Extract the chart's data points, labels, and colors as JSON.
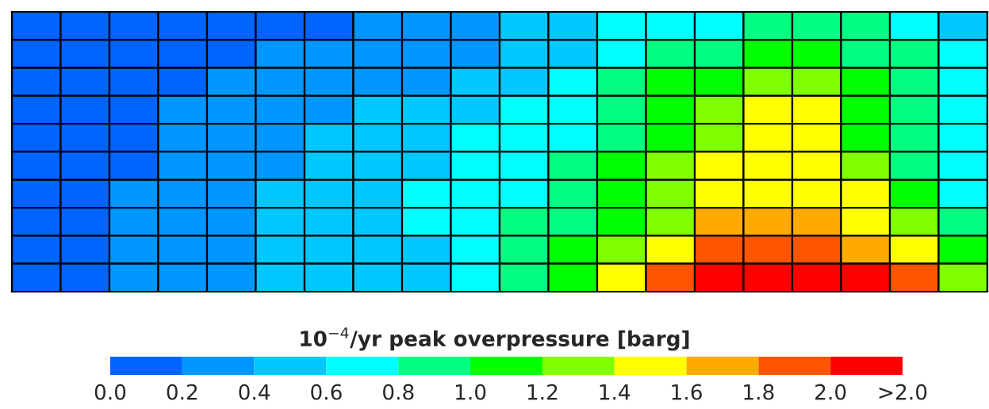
{
  "chart_data": {
    "type": "heatmap",
    "clabel": "10$^{−4}$/yr peak overpressure [barg]",
    "categories": [
      null,
      null,
      null,
      null,
      null,
      null,
      null,
      null,
      null,
      null,
      null,
      null,
      null,
      null,
      null,
      null,
      null,
      null,
      null,
      null
    ],
    "y_categories": [
      null,
      null,
      null,
      null,
      null,
      null,
      null,
      null,
      null,
      null
    ],
    "cells": [
      [
        0.1,
        0.1,
        0.1,
        0.1,
        0.1,
        0.1,
        0.1,
        0.3,
        0.3,
        0.3,
        0.5,
        0.5,
        0.7,
        0.7,
        0.7,
        0.9,
        0.9,
        0.9,
        0.7,
        0.5
      ],
      [
        0.1,
        0.1,
        0.1,
        0.1,
        0.1,
        0.3,
        0.3,
        0.3,
        0.3,
        0.3,
        0.5,
        0.5,
        0.7,
        0.9,
        0.9,
        1.1,
        1.1,
        0.9,
        0.9,
        0.7
      ],
      [
        0.1,
        0.1,
        0.1,
        0.1,
        0.3,
        0.3,
        0.3,
        0.3,
        0.3,
        0.5,
        0.5,
        0.7,
        0.9,
        1.1,
        1.1,
        1.3,
        1.3,
        1.1,
        0.9,
        0.7
      ],
      [
        0.1,
        0.1,
        0.1,
        0.3,
        0.3,
        0.3,
        0.3,
        0.5,
        0.5,
        0.5,
        0.7,
        0.7,
        0.9,
        1.1,
        1.3,
        1.5,
        1.5,
        1.1,
        0.9,
        0.7
      ],
      [
        0.1,
        0.1,
        0.1,
        0.3,
        0.3,
        0.3,
        0.5,
        0.5,
        0.5,
        0.7,
        0.7,
        0.7,
        0.9,
        1.1,
        1.3,
        1.5,
        1.5,
        1.1,
        0.9,
        0.7
      ],
      [
        0.1,
        0.1,
        0.1,
        0.3,
        0.3,
        0.3,
        0.5,
        0.5,
        0.5,
        0.7,
        0.7,
        0.9,
        1.1,
        1.3,
        1.5,
        1.5,
        1.5,
        1.3,
        0.9,
        0.7
      ],
      [
        0.1,
        0.1,
        0.3,
        0.3,
        0.3,
        0.5,
        0.5,
        0.5,
        0.7,
        0.7,
        0.7,
        0.9,
        1.1,
        1.3,
        1.5,
        1.5,
        1.5,
        1.5,
        1.1,
        0.7
      ],
      [
        0.1,
        0.1,
        0.3,
        0.3,
        0.3,
        0.5,
        0.5,
        0.5,
        0.7,
        0.7,
        0.9,
        0.9,
        1.1,
        1.3,
        1.7,
        1.7,
        1.7,
        1.5,
        1.3,
        0.9
      ],
      [
        0.1,
        0.1,
        0.3,
        0.3,
        0.3,
        0.5,
        0.5,
        0.5,
        0.5,
        0.7,
        0.9,
        1.1,
        1.3,
        1.5,
        1.9,
        1.9,
        1.9,
        1.7,
        1.5,
        1.1
      ],
      [
        0.1,
        0.1,
        0.3,
        0.3,
        0.3,
        0.5,
        0.5,
        0.5,
        0.5,
        0.7,
        0.9,
        1.1,
        1.5,
        1.9,
        2.1,
        2.1,
        2.1,
        2.1,
        1.9,
        1.3
      ]
    ],
    "colors": [
      "#0064ff",
      "#0096ff",
      "#00c8ff",
      "#00ffff",
      "#00ff80",
      "#00ff00",
      "#80ff00",
      "#ffff00",
      "#ffaa00",
      "#ff5500",
      "#ff0000"
    ],
    "clim": [
      0,
      2.2
    ],
    "cticks": [
      {
        "value": 0,
        "label": "0.0"
      },
      0.2,
      0.4,
      0.6,
      0.8,
      {
        "value": 1,
        "label": "1.0"
      },
      1.2,
      1.4,
      1.6,
      1.8,
      {
        "value": 2,
        "label": "2.0"
      },
      {
        "value": 2.2,
        "label": ">2.0"
      }
    ]
  }
}
